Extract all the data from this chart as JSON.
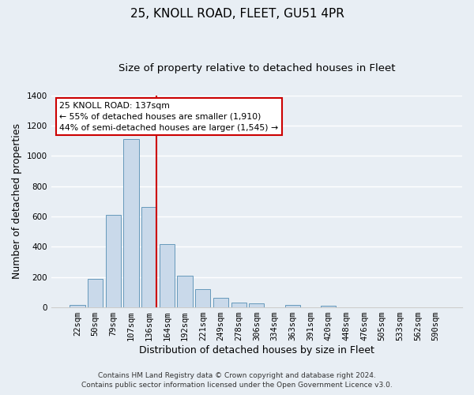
{
  "title": "25, KNOLL ROAD, FLEET, GU51 4PR",
  "subtitle": "Size of property relative to detached houses in Fleet",
  "xlabel": "Distribution of detached houses by size in Fleet",
  "ylabel": "Number of detached properties",
  "categories": [
    "22sqm",
    "50sqm",
    "79sqm",
    "107sqm",
    "136sqm",
    "164sqm",
    "192sqm",
    "221sqm",
    "249sqm",
    "278sqm",
    "306sqm",
    "334sqm",
    "363sqm",
    "391sqm",
    "420sqm",
    "448sqm",
    "476sqm",
    "505sqm",
    "533sqm",
    "562sqm",
    "590sqm"
  ],
  "values": [
    15,
    190,
    610,
    1110,
    660,
    420,
    210,
    120,
    65,
    30,
    25,
    0,
    15,
    0,
    10,
    0,
    0,
    0,
    0,
    0,
    0
  ],
  "bar_color": "#c9d9ea",
  "bar_edge_color": "#6699bb",
  "highlight_index": 4,
  "highlight_line_color": "#cc0000",
  "annotation_box_color": "#ffffff",
  "annotation_border_color": "#cc0000",
  "annotation_text_line1": "25 KNOLL ROAD: 137sqm",
  "annotation_text_line2": "← 55% of detached houses are smaller (1,910)",
  "annotation_text_line3": "44% of semi-detached houses are larger (1,545) →",
  "ylim": [
    0,
    1400
  ],
  "yticks": [
    0,
    200,
    400,
    600,
    800,
    1000,
    1200,
    1400
  ],
  "footer_line1": "Contains HM Land Registry data © Crown copyright and database right 2024.",
  "footer_line2": "Contains public sector information licensed under the Open Government Licence v3.0.",
  "background_color": "#e8eef4",
  "plot_bg_color": "#e8eef4",
  "grid_color": "#ffffff",
  "title_fontsize": 11,
  "subtitle_fontsize": 9.5,
  "axis_label_fontsize": 9,
  "tick_fontsize": 7.5,
  "footer_fontsize": 6.5
}
